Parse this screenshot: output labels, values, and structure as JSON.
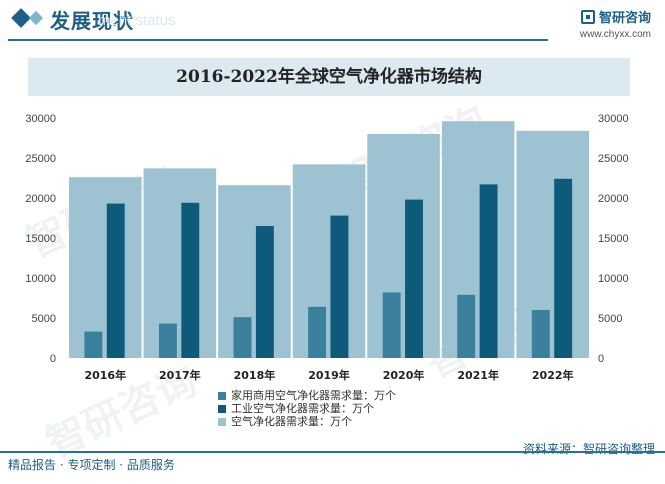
{
  "header": {
    "title": "发展现状",
    "ghost_text": "ment status"
  },
  "brand": {
    "name": "智研咨询",
    "url": "www.chyxx.com"
  },
  "chart_data": {
    "type": "bar",
    "title": "2016-2022年全球空气净化器市场结构",
    "categories": [
      "2016年",
      "2017年",
      "2018年",
      "2019年",
      "2020年",
      "2021年",
      "2022年"
    ],
    "series": [
      {
        "name": "家用商用空气净化器需求量：万个",
        "color": "#3a7f9b",
        "values": [
          3300,
          4300,
          5100,
          6400,
          8200,
          7900,
          6000
        ]
      },
      {
        "name": "工业空气净化器需求量：万个",
        "color": "#0d5a7a",
        "values": [
          19300,
          19400,
          16500,
          17800,
          19800,
          21700,
          22400
        ]
      },
      {
        "name": "空气净化器需求量：万个",
        "color": "#9dc3d3",
        "values": [
          22600,
          23700,
          21600,
          24200,
          28000,
          29600,
          28400
        ]
      }
    ],
    "ylim": [
      0,
      30000
    ],
    "yticks": [
      "0",
      "5000",
      "10000",
      "15000",
      "20000",
      "25000",
      "30000"
    ],
    "legend_position": "bottom",
    "grid": false
  },
  "footer": {
    "left": "精品报告 · 专项定制 · 品质服务",
    "source": "资料来源：智研咨询整理"
  },
  "watermark": "智研咨询"
}
